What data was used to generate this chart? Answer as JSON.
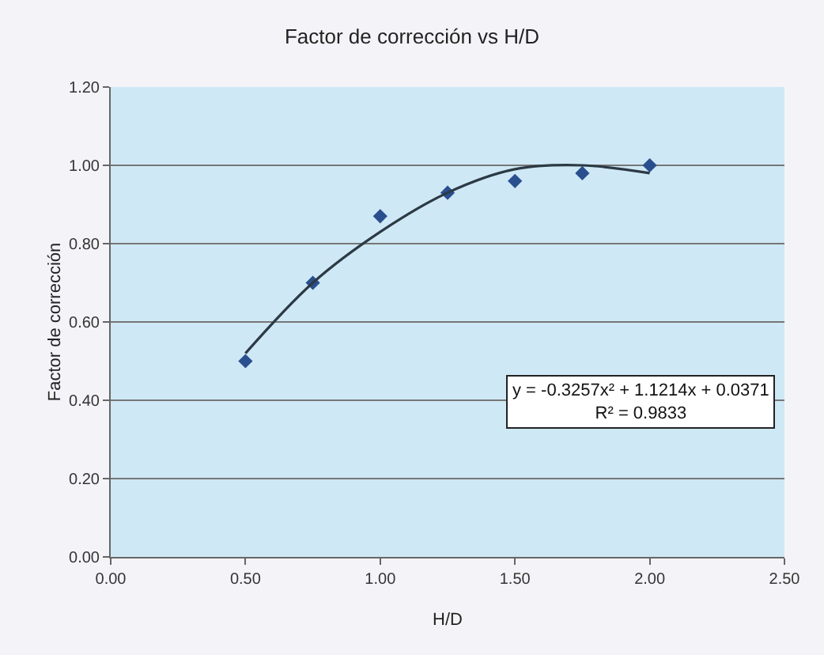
{
  "chart_data": {
    "type": "scatter",
    "title": "Factor de corrección vs H/D",
    "xlabel": "H/D",
    "ylabel": "Factor de corrección",
    "xlim": [
      0,
      2.5
    ],
    "xticks": [
      {
        "value": 0,
        "label": "0.00"
      },
      {
        "value": 0.5,
        "label": "0.50"
      },
      {
        "value": 1,
        "label": "1.00"
      },
      {
        "value": 1.5,
        "label": "1.50"
      },
      {
        "value": 2,
        "label": "2.00"
      },
      {
        "value": 2.5,
        "label": "2.50"
      }
    ],
    "ylim": [
      0,
      1.2
    ],
    "yticks": [
      {
        "value": 0,
        "label": "0.00"
      },
      {
        "value": 0.2,
        "label": "0.20"
      },
      {
        "value": 0.4,
        "label": "0.40"
      },
      {
        "value": 0.6,
        "label": "0.60"
      },
      {
        "value": 0.8,
        "label": "0.80"
      },
      {
        "value": 1,
        "label": "1.00"
      },
      {
        "value": 1.2,
        "label": "1.20"
      }
    ],
    "grid": "y",
    "marker": "diamond",
    "series": [
      {
        "type": "scatter",
        "color": "#2a4f8f",
        "x": [
          0.5,
          0.75,
          1.0,
          1.25,
          1.5,
          1.75,
          2.0
        ],
        "values": [
          0.5,
          0.7,
          0.87,
          0.93,
          0.96,
          0.98,
          1.0
        ]
      },
      {
        "type": "line",
        "color": "#2b3a44",
        "line_style": "solid",
        "marker": "none",
        "x": [
          0.5,
          0.75,
          1.0,
          1.25,
          1.5,
          1.75,
          2.0
        ],
        "values": [
          0.52,
          0.7,
          0.83,
          0.93,
          0.99,
          1.0,
          0.98
        ]
      }
    ],
    "annotations": [
      "y = -0.3257x² + 1.1214x + 0.0371\nR² = 0.9833"
    ]
  }
}
